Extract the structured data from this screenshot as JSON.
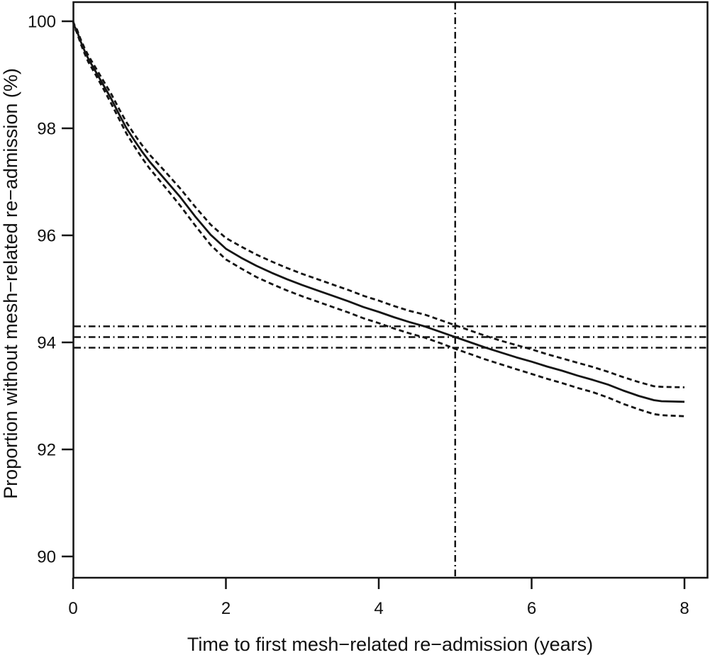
{
  "figure": {
    "background": "#ffffff",
    "ink_color": "#141414"
  },
  "chart_data": {
    "type": "line",
    "title": "",
    "xlabel": "Time to first mesh−related re−admission (years)",
    "ylabel": "Proportion without mesh−related re−admission (%)",
    "xlim": [
      0,
      8.3
    ],
    "ylim": [
      89.6,
      100.4
    ],
    "x_ticks": [
      0,
      2,
      4,
      6,
      8
    ],
    "y_ticks": [
      90,
      92,
      94,
      96,
      98,
      100
    ],
    "grid": false,
    "legend": "none",
    "frame": "full-box",
    "x": [
      0,
      0.02,
      0.05,
      0.1,
      0.15,
      0.2,
      0.3,
      0.4,
      0.5,
      0.6,
      0.7,
      0.8,
      0.9,
      1.0,
      1.2,
      1.4,
      1.6,
      1.8,
      2.0,
      2.2,
      2.4,
      2.6,
      2.8,
      3.0,
      3.2,
      3.4,
      3.6,
      3.8,
      4.0,
      4.2,
      4.4,
      4.6,
      4.8,
      5.0,
      5.2,
      5.4,
      5.6,
      5.8,
      6.0,
      6.2,
      6.4,
      6.6,
      6.8,
      7.0,
      7.2,
      7.4,
      7.6,
      7.7,
      8.0
    ],
    "series": [
      {
        "name": "estimate",
        "style": "solid",
        "y": [
          100,
          99.9,
          99.82,
          99.62,
          99.45,
          99.3,
          99.05,
          98.8,
          98.55,
          98.27,
          98.0,
          97.78,
          97.57,
          97.38,
          97.05,
          96.72,
          96.35,
          96.01,
          95.75,
          95.58,
          95.43,
          95.3,
          95.18,
          95.07,
          94.97,
          94.87,
          94.77,
          94.66,
          94.57,
          94.47,
          94.38,
          94.3,
          94.2,
          94.1,
          94.0,
          93.9,
          93.81,
          93.72,
          93.64,
          93.55,
          93.47,
          93.38,
          93.3,
          93.21,
          93.1,
          93.0,
          92.92,
          92.9,
          92.89
        ]
      },
      {
        "name": "upper-95ci",
        "style": "dashed",
        "y": [
          100,
          99.92,
          99.85,
          99.66,
          99.5,
          99.36,
          99.12,
          98.88,
          98.64,
          98.37,
          98.11,
          97.89,
          97.69,
          97.51,
          97.2,
          96.88,
          96.53,
          96.2,
          95.95,
          95.79,
          95.64,
          95.51,
          95.39,
          95.28,
          95.18,
          95.08,
          94.98,
          94.87,
          94.78,
          94.68,
          94.59,
          94.52,
          94.42,
          94.32,
          94.22,
          94.12,
          94.03,
          93.95,
          93.87,
          93.78,
          93.7,
          93.62,
          93.54,
          93.45,
          93.35,
          93.26,
          93.18,
          93.17,
          93.16
        ]
      },
      {
        "name": "lower-95ci",
        "style": "dashed",
        "y": [
          100,
          99.88,
          99.79,
          99.58,
          99.4,
          99.24,
          98.99,
          98.73,
          98.46,
          98.18,
          97.9,
          97.67,
          97.45,
          97.25,
          96.91,
          96.56,
          96.18,
          95.82,
          95.55,
          95.38,
          95.22,
          95.09,
          94.97,
          94.86,
          94.76,
          94.66,
          94.56,
          94.45,
          94.36,
          94.26,
          94.17,
          94.09,
          93.99,
          93.88,
          93.78,
          93.68,
          93.59,
          93.5,
          93.41,
          93.32,
          93.24,
          93.15,
          93.07,
          92.97,
          92.85,
          92.75,
          92.66,
          92.64,
          92.62
        ]
      }
    ],
    "reference_lines": {
      "style": "dash-dot",
      "vertical_x": 5,
      "horizontal_y": [
        94.3,
        94.1,
        93.9
      ]
    }
  }
}
